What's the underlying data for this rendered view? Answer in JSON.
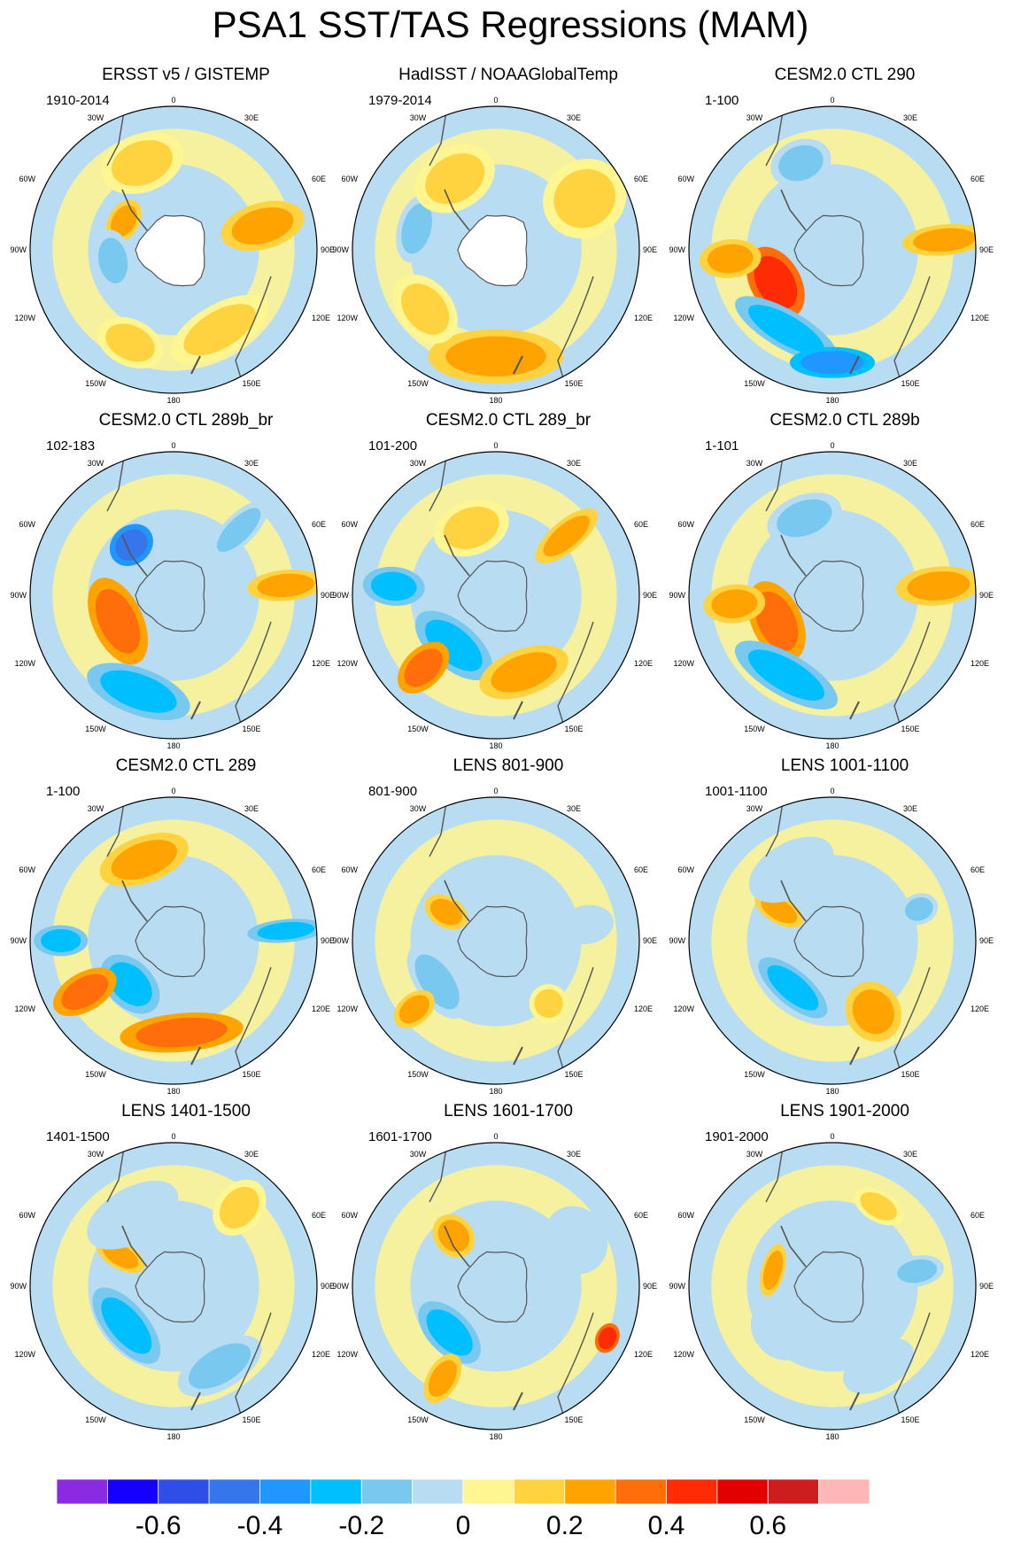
{
  "title": "PSA1 SST/TAS Regressions (MAM)",
  "longitude_labels": {
    "top": "0",
    "bottom": "180",
    "30W": "30W",
    "30E": "30E",
    "60W": "60W",
    "60E": "60E",
    "90W": "90W",
    "90E": "90E",
    "120W": "120W",
    "120E": "120E",
    "150W": "150W",
    "150E": "150E"
  },
  "panels": [
    {
      "title": "ERSST v5 / GISTEMP",
      "period": "1910-2014",
      "missing_antarctica": true,
      "anomalies": [
        {
          "lon": -20,
          "lat": -45,
          "rx": 0.22,
          "ry": 0.15,
          "value": 0.15
        },
        {
          "lon": -60,
          "lat": -62,
          "rx": 0.12,
          "ry": 0.08,
          "value": 0.2
        },
        {
          "lon": 75,
          "lat": -45,
          "rx": 0.12,
          "ry": 0.22,
          "value": 0.2
        },
        {
          "lon": -100,
          "lat": -60,
          "rx": 0.16,
          "ry": 0.1,
          "value": -0.2
        },
        {
          "lon": 150,
          "lat": -45,
          "rx": 0.28,
          "ry": 0.13,
          "value": 0.15
        },
        {
          "lon": -155,
          "lat": -40,
          "rx": 0.18,
          "ry": 0.12,
          "value": 0.15
        }
      ]
    },
    {
      "title": "HadISST / NOAAGlobalTemp",
      "period": "1979-2014",
      "missing_antarctica": true,
      "anomalies": [
        {
          "lon": 180,
          "lat": -38,
          "rx": 0.35,
          "ry": 0.14,
          "value": 0.2
        },
        {
          "lon": -130,
          "lat": -45,
          "rx": 0.2,
          "ry": 0.14,
          "value": 0.15
        },
        {
          "lon": -75,
          "lat": -50,
          "rx": 0.18,
          "ry": 0.1,
          "value": -0.2
        },
        {
          "lon": 60,
          "lat": -40,
          "rx": 0.2,
          "ry": 0.22,
          "value": 0.15
        },
        {
          "lon": -30,
          "lat": -50,
          "rx": 0.22,
          "ry": 0.16,
          "value": 0.15
        }
      ]
    },
    {
      "title": "CESM2.0 CTL 290",
      "period": "1-100",
      "missing_antarctica": false,
      "anomalies": [
        {
          "lon": -120,
          "lat": -58,
          "rx": 0.2,
          "ry": 0.13,
          "value": 0.4
        },
        {
          "lon": -150,
          "lat": -45,
          "rx": 0.3,
          "ry": 0.1,
          "value": -0.3
        },
        {
          "lon": 180,
          "lat": -35,
          "rx": 0.22,
          "ry": 0.08,
          "value": -0.35
        },
        {
          "lon": -20,
          "lat": -45,
          "rx": 0.16,
          "ry": 0.12,
          "value": -0.2
        },
        {
          "lon": 85,
          "lat": -35,
          "rx": 0.08,
          "ry": 0.22,
          "value": 0.25
        },
        {
          "lon": -95,
          "lat": -40,
          "rx": 0.1,
          "ry": 0.16,
          "value": 0.3
        }
      ]
    },
    {
      "title": "CESM2.0 CTL 289b_br",
      "period": "102-183",
      "missing_antarctica": false,
      "anomalies": [
        {
          "lon": -115,
          "lat": -60,
          "rx": 0.24,
          "ry": 0.13,
          "value": 0.35
        },
        {
          "lon": -40,
          "lat": -58,
          "rx": 0.12,
          "ry": 0.1,
          "value": -0.45
        },
        {
          "lon": -160,
          "lat": -40,
          "rx": 0.28,
          "ry": 0.12,
          "value": -0.25
        },
        {
          "lon": 45,
          "lat": -45,
          "rx": 0.08,
          "ry": 0.2,
          "value": -0.2
        },
        {
          "lon": 85,
          "lat": -35,
          "rx": 0.08,
          "ry": 0.2,
          "value": 0.2
        }
      ]
    },
    {
      "title": "CESM2.0 CTL 289_br",
      "period": "101-200",
      "missing_antarctica": false,
      "anomalies": [
        {
          "lon": -140,
          "lat": -58,
          "rx": 0.24,
          "ry": 0.12,
          "value": -0.3
        },
        {
          "lon": -135,
          "lat": -40,
          "rx": 0.1,
          "ry": 0.16,
          "value": 0.35
        },
        {
          "lon": -85,
          "lat": -40,
          "rx": 0.1,
          "ry": 0.16,
          "value": -0.25
        },
        {
          "lon": 160,
          "lat": -50,
          "rx": 0.24,
          "ry": 0.12,
          "value": 0.2
        },
        {
          "lon": 50,
          "lat": -45,
          "rx": 0.08,
          "ry": 0.2,
          "value": 0.2
        },
        {
          "lon": -20,
          "lat": -55,
          "rx": 0.2,
          "ry": 0.14,
          "value": 0.15
        }
      ]
    },
    {
      "title": "CESM2.0 CTL 289b",
      "period": "1-101",
      "missing_antarctica": false,
      "anomalies": [
        {
          "lon": -115,
          "lat": -60,
          "rx": 0.22,
          "ry": 0.13,
          "value": 0.35
        },
        {
          "lon": -150,
          "lat": -45,
          "rx": 0.3,
          "ry": 0.11,
          "value": -0.3
        },
        {
          "lon": 85,
          "lat": -38,
          "rx": 0.1,
          "ry": 0.22,
          "value": 0.3
        },
        {
          "lon": -20,
          "lat": -50,
          "rx": 0.2,
          "ry": 0.12,
          "value": -0.15
        },
        {
          "lon": -95,
          "lat": -42,
          "rx": 0.1,
          "ry": 0.16,
          "value": 0.3
        }
      ]
    },
    {
      "title": "CESM2.0 CTL 289",
      "period": "1-100",
      "missing_antarctica": false,
      "anomalies": [
        {
          "lon": -135,
          "lat": -60,
          "rx": 0.18,
          "ry": 0.12,
          "value": -0.3
        },
        {
          "lon": -120,
          "lat": -40,
          "rx": 0.1,
          "ry": 0.18,
          "value": 0.35
        },
        {
          "lon": 175,
          "lat": -45,
          "rx": 0.32,
          "ry": 0.1,
          "value": 0.35
        },
        {
          "lon": -20,
          "lat": -48,
          "rx": 0.24,
          "ry": 0.12,
          "value": 0.2
        },
        {
          "lon": 85,
          "lat": -35,
          "rx": 0.06,
          "ry": 0.2,
          "value": -0.25
        },
        {
          "lon": -90,
          "lat": -35,
          "rx": 0.08,
          "ry": 0.14,
          "value": -0.3
        }
      ]
    },
    {
      "title": "LENS 801-900",
      "period": "801-900",
      "missing_antarctica": false,
      "anomalies": [
        {
          "lon": -125,
          "lat": -55,
          "rx": 0.22,
          "ry": 0.11,
          "value": -0.15
        },
        {
          "lon": -130,
          "lat": -38,
          "rx": 0.08,
          "ry": 0.12,
          "value": 0.25
        },
        {
          "lon": -60,
          "lat": -62,
          "rx": 0.08,
          "ry": 0.12,
          "value": 0.25
        },
        {
          "lon": 80,
          "lat": -45,
          "rx": 0.1,
          "ry": 0.14,
          "value": -0.1
        },
        {
          "lon": 140,
          "lat": -50,
          "rx": 0.1,
          "ry": 0.1,
          "value": 0.15
        }
      ]
    },
    {
      "title": "LENS 1001-1100",
      "period": "1001-1100",
      "missing_antarctica": false,
      "anomalies": [
        {
          "lon": -140,
          "lat": -60,
          "rx": 0.22,
          "ry": 0.09,
          "value": -0.25
        },
        {
          "lon": -60,
          "lat": -60,
          "rx": 0.07,
          "ry": 0.14,
          "value": 0.3
        },
        {
          "lon": 150,
          "lat": -50,
          "rx": 0.14,
          "ry": 0.16,
          "value": 0.2
        },
        {
          "lon": 70,
          "lat": -45,
          "rx": 0.08,
          "ry": 0.1,
          "value": -0.15
        },
        {
          "lon": -30,
          "lat": -50,
          "rx": 0.24,
          "ry": 0.14,
          "value": -0.1
        }
      ]
    },
    {
      "title": "LENS 1401-1500",
      "period": "1401-1500",
      "missing_antarctica": false,
      "anomalies": [
        {
          "lon": -130,
          "lat": -60,
          "rx": 0.24,
          "ry": 0.11,
          "value": -0.25
        },
        {
          "lon": -60,
          "lat": -60,
          "rx": 0.07,
          "ry": 0.14,
          "value": 0.3
        },
        {
          "lon": 150,
          "lat": -45,
          "rx": 0.24,
          "ry": 0.12,
          "value": -0.12
        },
        {
          "lon": 40,
          "lat": -40,
          "rx": 0.12,
          "ry": 0.16,
          "value": 0.12
        },
        {
          "lon": -30,
          "lat": -50,
          "rx": 0.26,
          "ry": 0.14,
          "value": -0.1
        }
      ]
    },
    {
      "title": "LENS 1601-1700",
      "period": "1601-1700",
      "missing_antarctica": false,
      "anomalies": [
        {
          "lon": -135,
          "lat": -58,
          "rx": 0.2,
          "ry": 0.11,
          "value": -0.25
        },
        {
          "lon": -150,
          "lat": -38,
          "rx": 0.08,
          "ry": 0.14,
          "value": 0.3
        },
        {
          "lon": 115,
          "lat": -30,
          "rx": 0.08,
          "ry": 0.06,
          "value": 0.4
        },
        {
          "lon": -40,
          "lat": -58,
          "rx": 0.1,
          "ry": 0.12,
          "value": 0.2
        },
        {
          "lon": 60,
          "lat": -45,
          "rx": 0.18,
          "ry": 0.16,
          "value": -0.1
        }
      ]
    },
    {
      "title": "LENS 1901-2000",
      "period": "1901-2000",
      "missing_antarctica": false,
      "anomalies": [
        {
          "lon": 30,
          "lat": -45,
          "rx": 0.14,
          "ry": 0.08,
          "value": 0.15
        },
        {
          "lon": -75,
          "lat": -60,
          "rx": 0.14,
          "ry": 0.06,
          "value": 0.2
        },
        {
          "lon": 80,
          "lat": -48,
          "rx": 0.08,
          "ry": 0.14,
          "value": -0.15
        },
        {
          "lon": -130,
          "lat": -55,
          "rx": 0.16,
          "ry": 0.12,
          "value": -0.1
        },
        {
          "lon": 150,
          "lat": -45,
          "rx": 0.2,
          "ry": 0.12,
          "value": -0.1
        }
      ]
    }
  ],
  "colorbar": {
    "colors": [
      "#8a2be2",
      "#1500ff",
      "#2f4ee8",
      "#3577ea",
      "#1f97ff",
      "#00bfff",
      "#78c8f0",
      "#b8ddf2",
      "#fff591",
      "#ffd23f",
      "#ffa300",
      "#ff6e0a",
      "#ff2b05",
      "#e30000",
      "#cd1d1d",
      "#ffb6b6"
    ],
    "tick_labels": [
      "-0.6",
      "-0.4",
      "-0.2",
      "0",
      "0.2",
      "0.4",
      "0.6"
    ],
    "tick_boundary_index": [
      2,
      4,
      6,
      8,
      10,
      12,
      14
    ]
  }
}
